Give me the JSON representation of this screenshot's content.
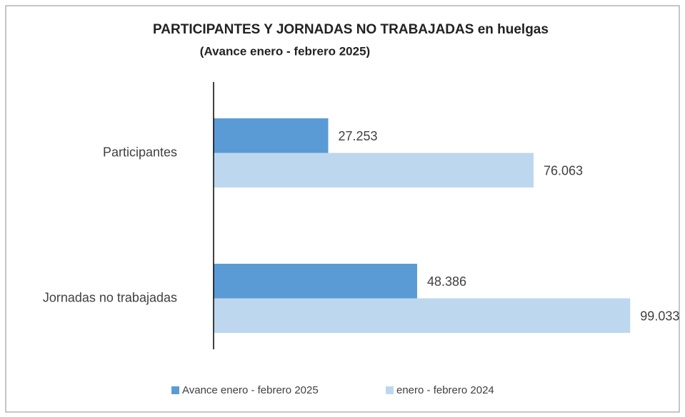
{
  "chart_data": {
    "type": "hbar",
    "title": "PARTICIPANTES Y JORNADAS NO TRABAJADAS en huelgas",
    "subtitle": "(Avance enero - febrero 2025)",
    "categories": [
      "Participantes",
      "Jornadas no trabajadas"
    ],
    "series": [
      {
        "name": "Avance enero - febrero 2025",
        "color": "#5b9bd5",
        "values": [
          27253,
          48386
        ],
        "value_labels": [
          "27.253",
          "48.386"
        ]
      },
      {
        "name": "enero - febrero 2024",
        "color": "#bdd7ee",
        "values": [
          76063,
          99033
        ],
        "value_labels": [
          "76.063",
          "99.033"
        ]
      }
    ],
    "xlim": [
      0,
      100000
    ],
    "legend": "bottom"
  }
}
